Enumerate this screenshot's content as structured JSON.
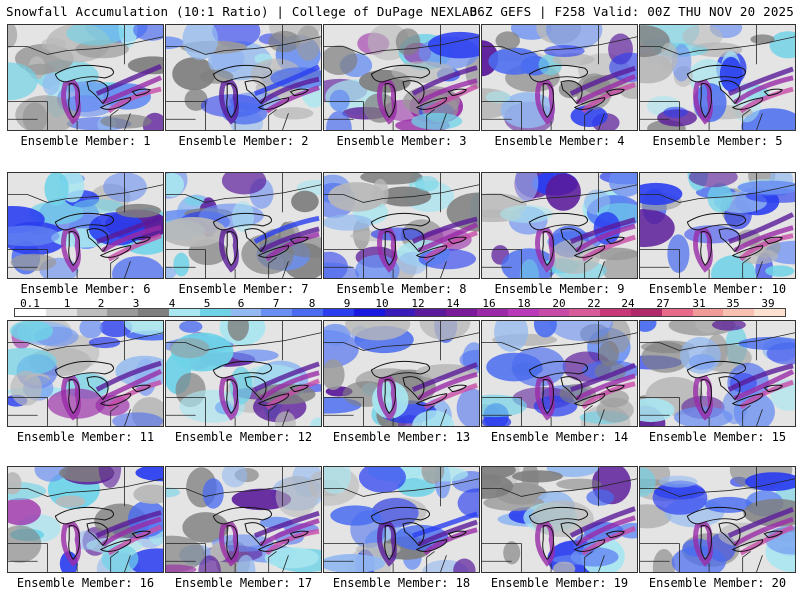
{
  "header": {
    "title": "Snowfall Accumulation (10:1 Ratio) | College of DuPage NEXLAB",
    "run_info": "06Z GEFS | F258 Valid: 00Z THU NOV 20 2025"
  },
  "members": [
    {
      "label": "Ensemble Member: 1",
      "intensity": 0.55
    },
    {
      "label": "Ensemble Member: 2",
      "intensity": 0.45
    },
    {
      "label": "Ensemble Member: 3",
      "intensity": 0.75
    },
    {
      "label": "Ensemble Member: 4",
      "intensity": 0.5
    },
    {
      "label": "Ensemble Member: 5",
      "intensity": 0.55
    },
    {
      "label": "Ensemble Member: 6",
      "intensity": 0.6
    },
    {
      "label": "Ensemble Member: 7",
      "intensity": 0.45
    },
    {
      "label": "Ensemble Member: 8",
      "intensity": 0.65
    },
    {
      "label": "Ensemble Member: 9",
      "intensity": 0.8
    },
    {
      "label": "Ensemble Member: 10",
      "intensity": 0.6
    },
    {
      "label": "Ensemble Member: 11",
      "intensity": 0.7
    },
    {
      "label": "Ensemble Member: 12",
      "intensity": 0.75
    },
    {
      "label": "Ensemble Member: 13",
      "intensity": 0.55
    },
    {
      "label": "Ensemble Member: 14",
      "intensity": 0.55
    },
    {
      "label": "Ensemble Member: 15",
      "intensity": 0.5
    },
    {
      "label": "Ensemble Member: 16",
      "intensity": 0.7
    },
    {
      "label": "Ensemble Member: 17",
      "intensity": 0.6
    },
    {
      "label": "Ensemble Member: 18",
      "intensity": 0.45
    },
    {
      "label": "Ensemble Member: 19",
      "intensity": 0.5
    },
    {
      "label": "Ensemble Member: 20",
      "intensity": 0.6
    }
  ],
  "colorbar": {
    "ticks": [
      "0.1",
      "1",
      "2",
      "3",
      "4",
      "5",
      "6",
      "7",
      "8",
      "9",
      "10",
      "12",
      "14",
      "16",
      "18",
      "20",
      "22",
      "24",
      "27",
      "31",
      "35",
      "39"
    ],
    "colors": [
      "#ffffff",
      "#e0e0e0",
      "#bdbdbd",
      "#9a9a9a",
      "#7f7f7f",
      "#a8e6f0",
      "#6fd3e8",
      "#93b9f0",
      "#6a8ff2",
      "#4a6cf0",
      "#2a3ef0",
      "#1818e0",
      "#3a1ab8",
      "#5a1a9a",
      "#7a1a9a",
      "#9a2aa8",
      "#b83ab8",
      "#c84aa8",
      "#d85a98",
      "#c83878",
      "#b02a6a",
      "#e86a8a",
      "#f09a9a",
      "#f8c0b0",
      "#fce0d0"
    ]
  }
}
